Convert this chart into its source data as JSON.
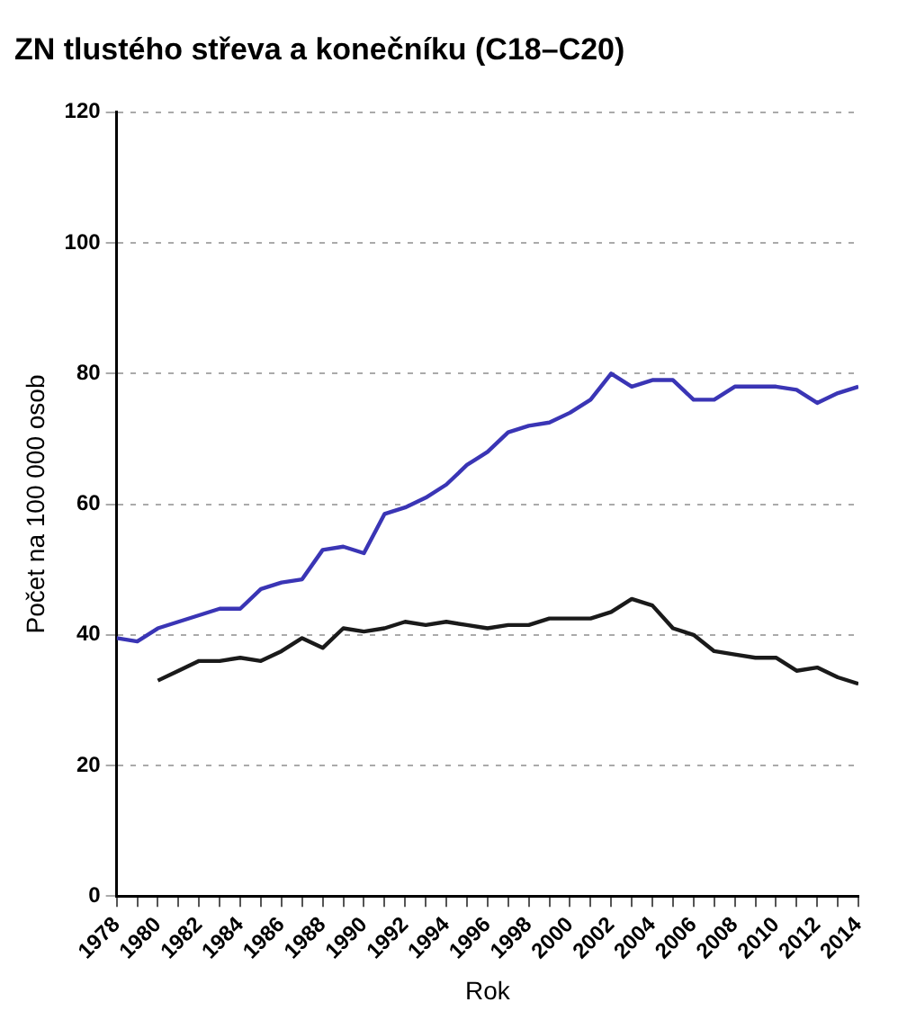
{
  "chart_data": {
    "type": "line",
    "title": "ZN tlustého střeva a konečníku (C18–C20)",
    "xlabel": "Rok",
    "ylabel": "Počet na 100 000 osob",
    "xlim": [
      1978,
      2014
    ],
    "xticks": [
      1978,
      {
        "value": 1979,
        "label": null
      },
      1980,
      {
        "value": 1981,
        "label": null
      },
      1982,
      {
        "value": 1983,
        "label": null
      },
      1984,
      {
        "value": 1985,
        "label": null
      },
      1986,
      {
        "value": 1987,
        "label": null
      },
      1988,
      {
        "value": 1989,
        "label": null
      },
      1990,
      {
        "value": 1991,
        "label": null
      },
      1992,
      {
        "value": 1993,
        "label": null
      },
      1994,
      {
        "value": 1995,
        "label": null
      },
      1996,
      {
        "value": 1997,
        "label": null
      },
      1998,
      {
        "value": 1999,
        "label": null
      },
      2000,
      {
        "value": 2001,
        "label": null
      },
      2002,
      {
        "value": 2003,
        "label": null
      },
      2004,
      {
        "value": 2005,
        "label": null
      },
      2006,
      {
        "value": 2007,
        "label": null
      },
      2008,
      {
        "value": 2009,
        "label": null
      },
      2010,
      {
        "value": 2011,
        "label": null
      },
      2012,
      {
        "value": 2013,
        "label": null
      },
      2014
    ],
    "ylim": [
      0,
      120
    ],
    "yticks": [
      0,
      20,
      40,
      60,
      80,
      100,
      120
    ],
    "grid": "y",
    "legend": false,
    "marker": "none",
    "line_style": "solid",
    "series": [
      {
        "color": "#3a35b5",
        "x": [
          1978,
          1979,
          1980,
          1981,
          1982,
          1983,
          1984,
          1985,
          1986,
          1987,
          1988,
          1989,
          1990,
          1991,
          1992,
          1993,
          1994,
          1995,
          1996,
          1997,
          1998,
          1999,
          2000,
          2001,
          2002,
          2003,
          2004,
          2005,
          2006,
          2007,
          2008,
          2009,
          2010,
          2011,
          2012,
          2013,
          2014
        ],
        "values": [
          39.5,
          39,
          41,
          42,
          43,
          44,
          44,
          47,
          48,
          48.5,
          53,
          53.5,
          52.5,
          58.5,
          59.5,
          61,
          63,
          66,
          68,
          71,
          72,
          72.5,
          74,
          76,
          80,
          78,
          79,
          79,
          76,
          76,
          78,
          78,
          78,
          77.5,
          75.5,
          77,
          78
        ]
      },
      {
        "color": "#1a1a1a",
        "x": [
          1980,
          1981,
          1982,
          1983,
          1984,
          1985,
          1986,
          1987,
          1988,
          1989,
          1990,
          1991,
          1992,
          1993,
          1994,
          1995,
          1996,
          1997,
          1998,
          1999,
          2000,
          2001,
          2002,
          2003,
          2004,
          2005,
          2006,
          2007,
          2008,
          2009,
          2010,
          2011,
          2012,
          2013,
          2014
        ],
        "values": [
          33,
          34.5,
          36,
          36,
          36.5,
          36,
          37.5,
          39.5,
          38,
          41,
          40.5,
          41,
          42,
          41.5,
          42,
          41.5,
          41,
          41.5,
          41.5,
          42.5,
          42.5,
          42.5,
          43.5,
          45.5,
          44.5,
          41,
          40,
          37.5,
          37,
          36.5,
          36.5,
          34.5,
          35,
          33.5,
          32.5
        ]
      }
    ]
  }
}
